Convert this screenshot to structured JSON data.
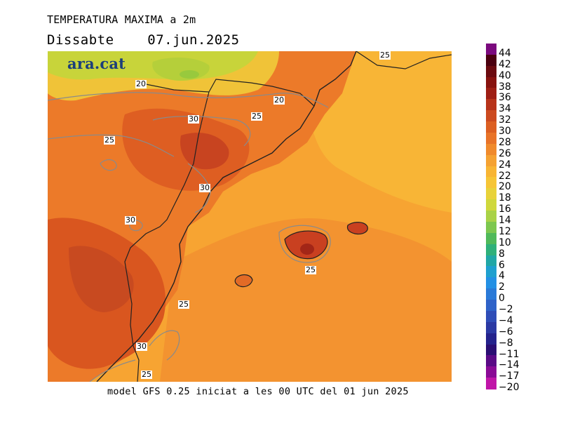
{
  "header": {
    "title": "TEMPERATURA MAXIMA a 2m",
    "day": "Dissabte",
    "date": "07.jun.2025"
  },
  "map": {
    "brand": "ara.cat",
    "contour_labels": [
      "20",
      "20",
      "25",
      "25",
      "25",
      "25",
      "25",
      "25",
      "30",
      "30",
      "30",
      "30"
    ]
  },
  "legend": {
    "unit_hint": "",
    "levels": [
      "44",
      "42",
      "40",
      "38",
      "36",
      "34",
      "32",
      "30",
      "28",
      "26",
      "24",
      "22",
      "20",
      "18",
      "16",
      "14",
      "12",
      "10",
      "8",
      "6",
      "4",
      "2",
      "0",
      "−2",
      "−4",
      "−6",
      "−8",
      "−11",
      "−14",
      "−17",
      "−20"
    ],
    "colors": [
      "#7b0a7e",
      "#4b0010",
      "#6b0a10",
      "#87120f",
      "#9e1e14",
      "#b7331a",
      "#cc4a1f",
      "#dc5f22",
      "#e87328",
      "#f08a2c",
      "#f5a232",
      "#f8b534",
      "#f6c536",
      "#e8d23a",
      "#cfd83c",
      "#a9d247",
      "#7dc74f",
      "#50b95a",
      "#2fb07a",
      "#21a7a6",
      "#1fa0cf",
      "#2390e4",
      "#2a7ad8",
      "#2f62c8",
      "#2f4db7",
      "#2b39a3",
      "#24228c",
      "#2a0e73",
      "#5a0a86",
      "#8a0a96",
      "#c015a8"
    ]
  },
  "footer": {
    "caption": "model GFS 0.25 iniciat a les 00 UTC del 01 jun 2025"
  }
}
